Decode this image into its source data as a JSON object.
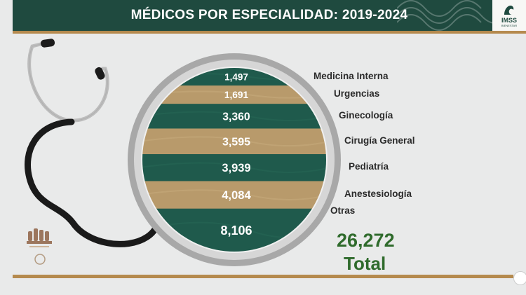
{
  "header": {
    "title": "MÉDICOS POR ESPECIALIDAD: 2019-2024",
    "logo_text": "IMSS",
    "logo_sub": "BIENESTAR"
  },
  "chart_data": {
    "type": "bar",
    "title": "MÉDICOS POR ESPECIALIDAD: 2019-2024",
    "categories": [
      "Medicina Interna",
      "Urgencias",
      "Ginecología",
      "Cirugía General",
      "Pediatría",
      "Anestesiología",
      "Otras"
    ],
    "values": [
      1497,
      1691,
      3360,
      3595,
      3939,
      4084,
      8106
    ],
    "value_labels": [
      "1,497",
      "1,691",
      "3,360",
      "3,595",
      "3,939",
      "4,084",
      "8,106"
    ],
    "colors": [
      "#1f5a4c",
      "#b89a6b",
      "#1f5a4c",
      "#b89a6b",
      "#1f5a4c",
      "#b89a6b",
      "#1f5a4c"
    ]
  },
  "total": {
    "value": "26,272",
    "label": "Total"
  },
  "colors": {
    "green": "#1f4a3f",
    "gold": "#b58a4e",
    "total_green": "#2f6b2c"
  }
}
